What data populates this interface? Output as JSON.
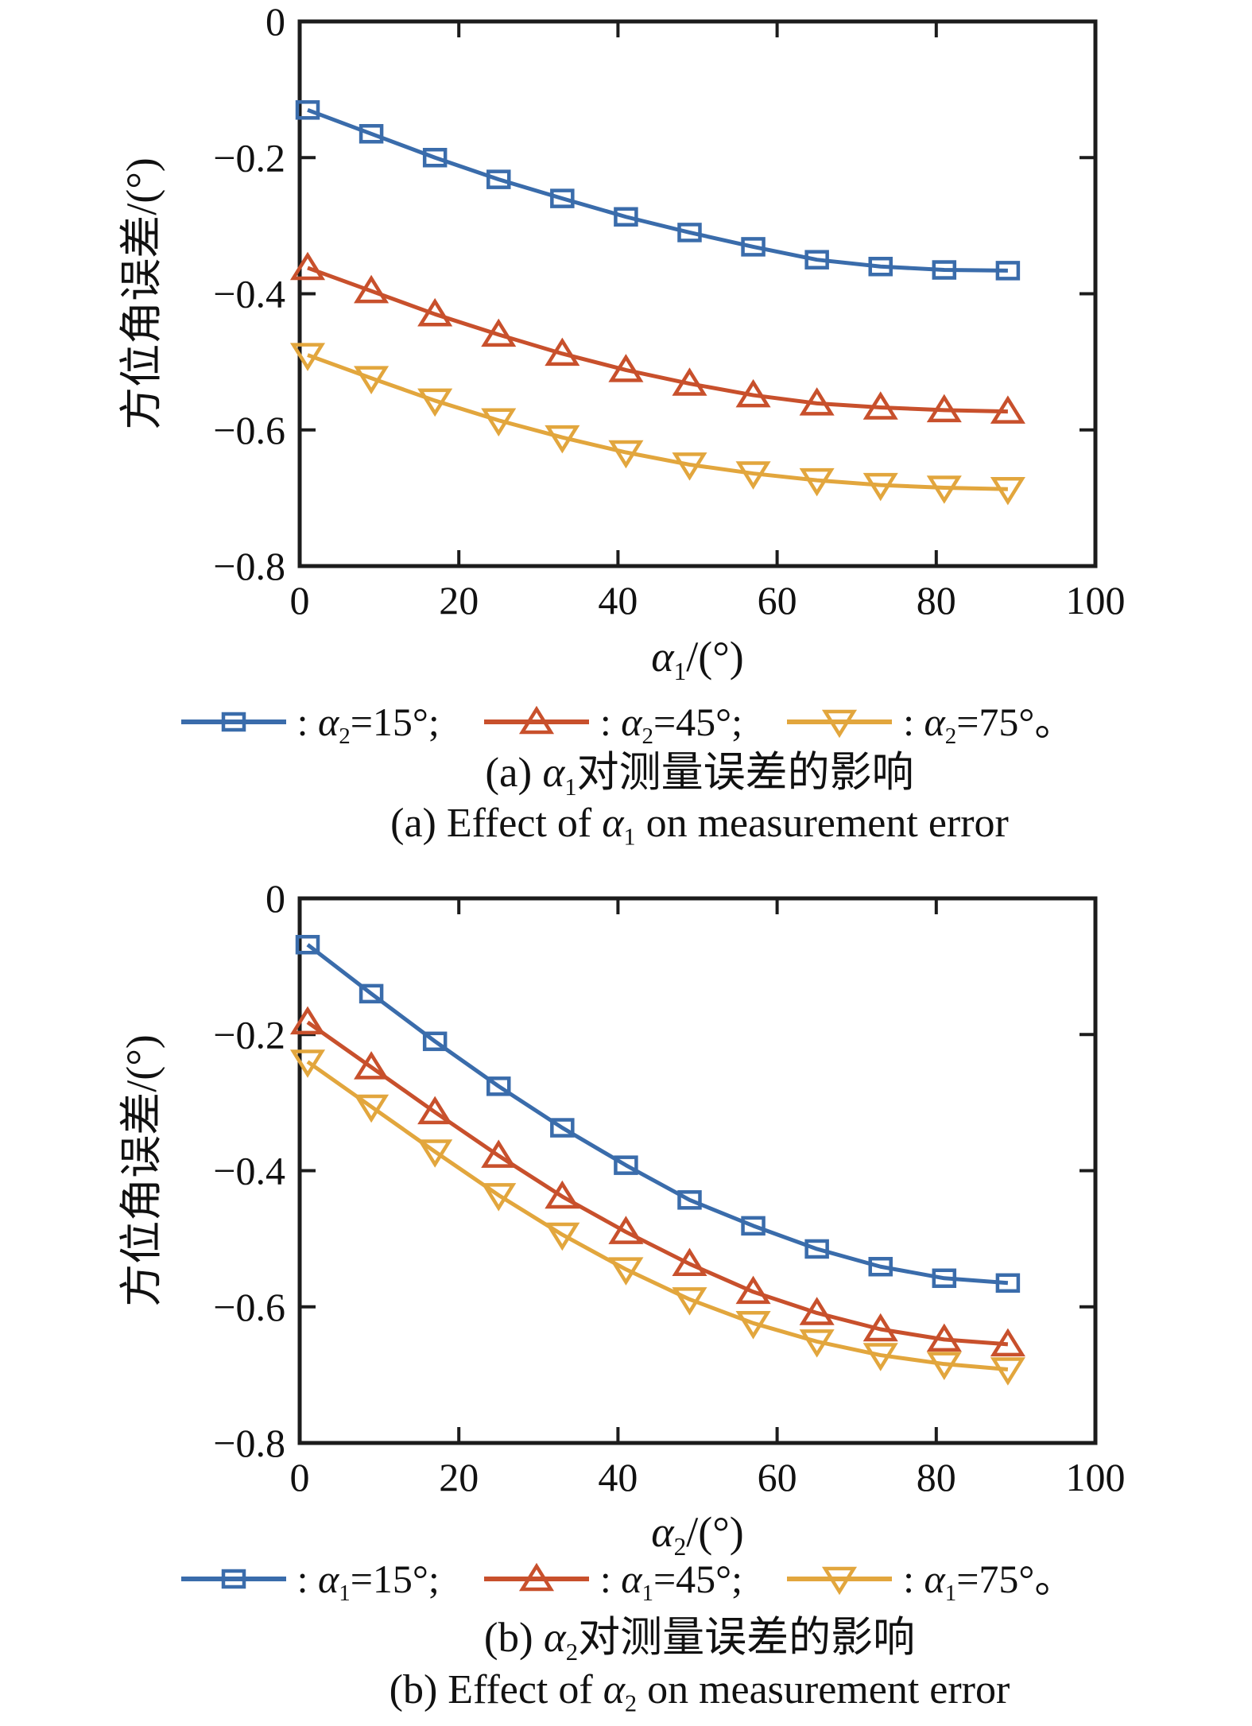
{
  "figure_title": "",
  "colors": {
    "series_blue": "#3a6cab",
    "series_red": "#c8502c",
    "series_yellow": "#e2a63d",
    "axis": "#1c1c1c",
    "text": "#111111"
  },
  "chart_data": [
    {
      "type": "line",
      "id": "a",
      "title": "",
      "xlabel_text": "α1/(°)",
      "xlabel": {
        "var": "α",
        "sub": "1",
        "post": "/(°)"
      },
      "ylabel": "方位角误差/(°)",
      "xlim": [
        0,
        100
      ],
      "ylim": [
        -0.8,
        0
      ],
      "x_ticks": [
        0,
        20,
        40,
        60,
        80,
        100
      ],
      "y_ticks": [
        0,
        -0.2,
        -0.4,
        -0.6,
        -0.8
      ],
      "grid": false,
      "legend_position": "below",
      "x": [
        1,
        9,
        17,
        25,
        33,
        41,
        49,
        57,
        65,
        73,
        81,
        89
      ],
      "series": [
        {
          "name": "α2=15°",
          "marker": "square",
          "color": "#3a6cab",
          "values": [
            -0.13,
            -0.165,
            -0.2,
            -0.232,
            -0.26,
            -0.287,
            -0.31,
            -0.331,
            -0.35,
            -0.36,
            -0.365,
            -0.366
          ]
        },
        {
          "name": "α2=45°",
          "marker": "triangle-up",
          "color": "#c8502c",
          "values": [
            -0.362,
            -0.396,
            -0.43,
            -0.46,
            -0.488,
            -0.512,
            -0.532,
            -0.549,
            -0.561,
            -0.567,
            -0.571,
            -0.573
          ]
        },
        {
          "name": "α2=75°",
          "marker": "triangle-down",
          "color": "#e2a63d",
          "values": [
            -0.49,
            -0.524,
            -0.557,
            -0.586,
            -0.611,
            -0.633,
            -0.651,
            -0.664,
            -0.674,
            -0.681,
            -0.685,
            -0.687
          ]
        }
      ],
      "legend": [
        {
          "colon": ": ",
          "var": "α",
          "sub": "2",
          "rest": "=15°;"
        },
        {
          "colon": ": ",
          "var": "α",
          "sub": "2",
          "rest": "=45°;"
        },
        {
          "colon": ": ",
          "var": "α",
          "sub": "2",
          "rest": "=75°。"
        }
      ],
      "captions": {
        "zh": {
          "pre": "(a) ",
          "var": "α",
          "sub": "1",
          "post": "对测量误差的影响"
        },
        "en": {
          "pre": "(a) Effect of ",
          "var": "α",
          "sub": "1",
          "post": " on measurement error"
        }
      }
    },
    {
      "type": "line",
      "id": "b",
      "title": "",
      "xlabel_text": "α2/(°)",
      "xlabel": {
        "var": "α",
        "sub": "2",
        "post": "/(°)"
      },
      "ylabel": "方位角误差/(°)",
      "xlim": [
        0,
        100
      ],
      "ylim": [
        -0.8,
        0
      ],
      "x_ticks": [
        0,
        20,
        40,
        60,
        80,
        100
      ],
      "y_ticks": [
        0,
        -0.2,
        -0.4,
        -0.6,
        -0.8
      ],
      "grid": false,
      "legend_position": "below",
      "x": [
        1,
        9,
        17,
        25,
        33,
        41,
        49,
        57,
        65,
        73,
        81,
        89
      ],
      "series": [
        {
          "name": "α1=15°",
          "marker": "square",
          "color": "#3a6cab",
          "values": [
            -0.068,
            -0.14,
            -0.21,
            -0.276,
            -0.337,
            -0.392,
            -0.443,
            -0.481,
            -0.515,
            -0.541,
            -0.558,
            -0.565
          ]
        },
        {
          "name": "α1=45°",
          "marker": "triangle-up",
          "color": "#c8502c",
          "values": [
            -0.182,
            -0.248,
            -0.314,
            -0.378,
            -0.438,
            -0.49,
            -0.537,
            -0.578,
            -0.609,
            -0.633,
            -0.648,
            -0.655
          ]
        },
        {
          "name": "α1=75°",
          "marker": "triangle-down",
          "color": "#e2a63d",
          "values": [
            -0.24,
            -0.306,
            -0.372,
            -0.436,
            -0.494,
            -0.545,
            -0.589,
            -0.624,
            -0.651,
            -0.671,
            -0.684,
            -0.692
          ]
        }
      ],
      "legend": [
        {
          "colon": ": ",
          "var": "α",
          "sub": "1",
          "rest": "=15°;"
        },
        {
          "colon": ": ",
          "var": "α",
          "sub": "1",
          "rest": "=45°;"
        },
        {
          "colon": ": ",
          "var": "α",
          "sub": "1",
          "rest": "=75°。"
        }
      ],
      "captions": {
        "zh": {
          "pre": "(b) ",
          "var": "α",
          "sub": "2",
          "post": "对测量误差的影响"
        },
        "en": {
          "pre": "(b) Effect of ",
          "var": "α",
          "sub": "2",
          "post": " on measurement error"
        }
      }
    }
  ]
}
